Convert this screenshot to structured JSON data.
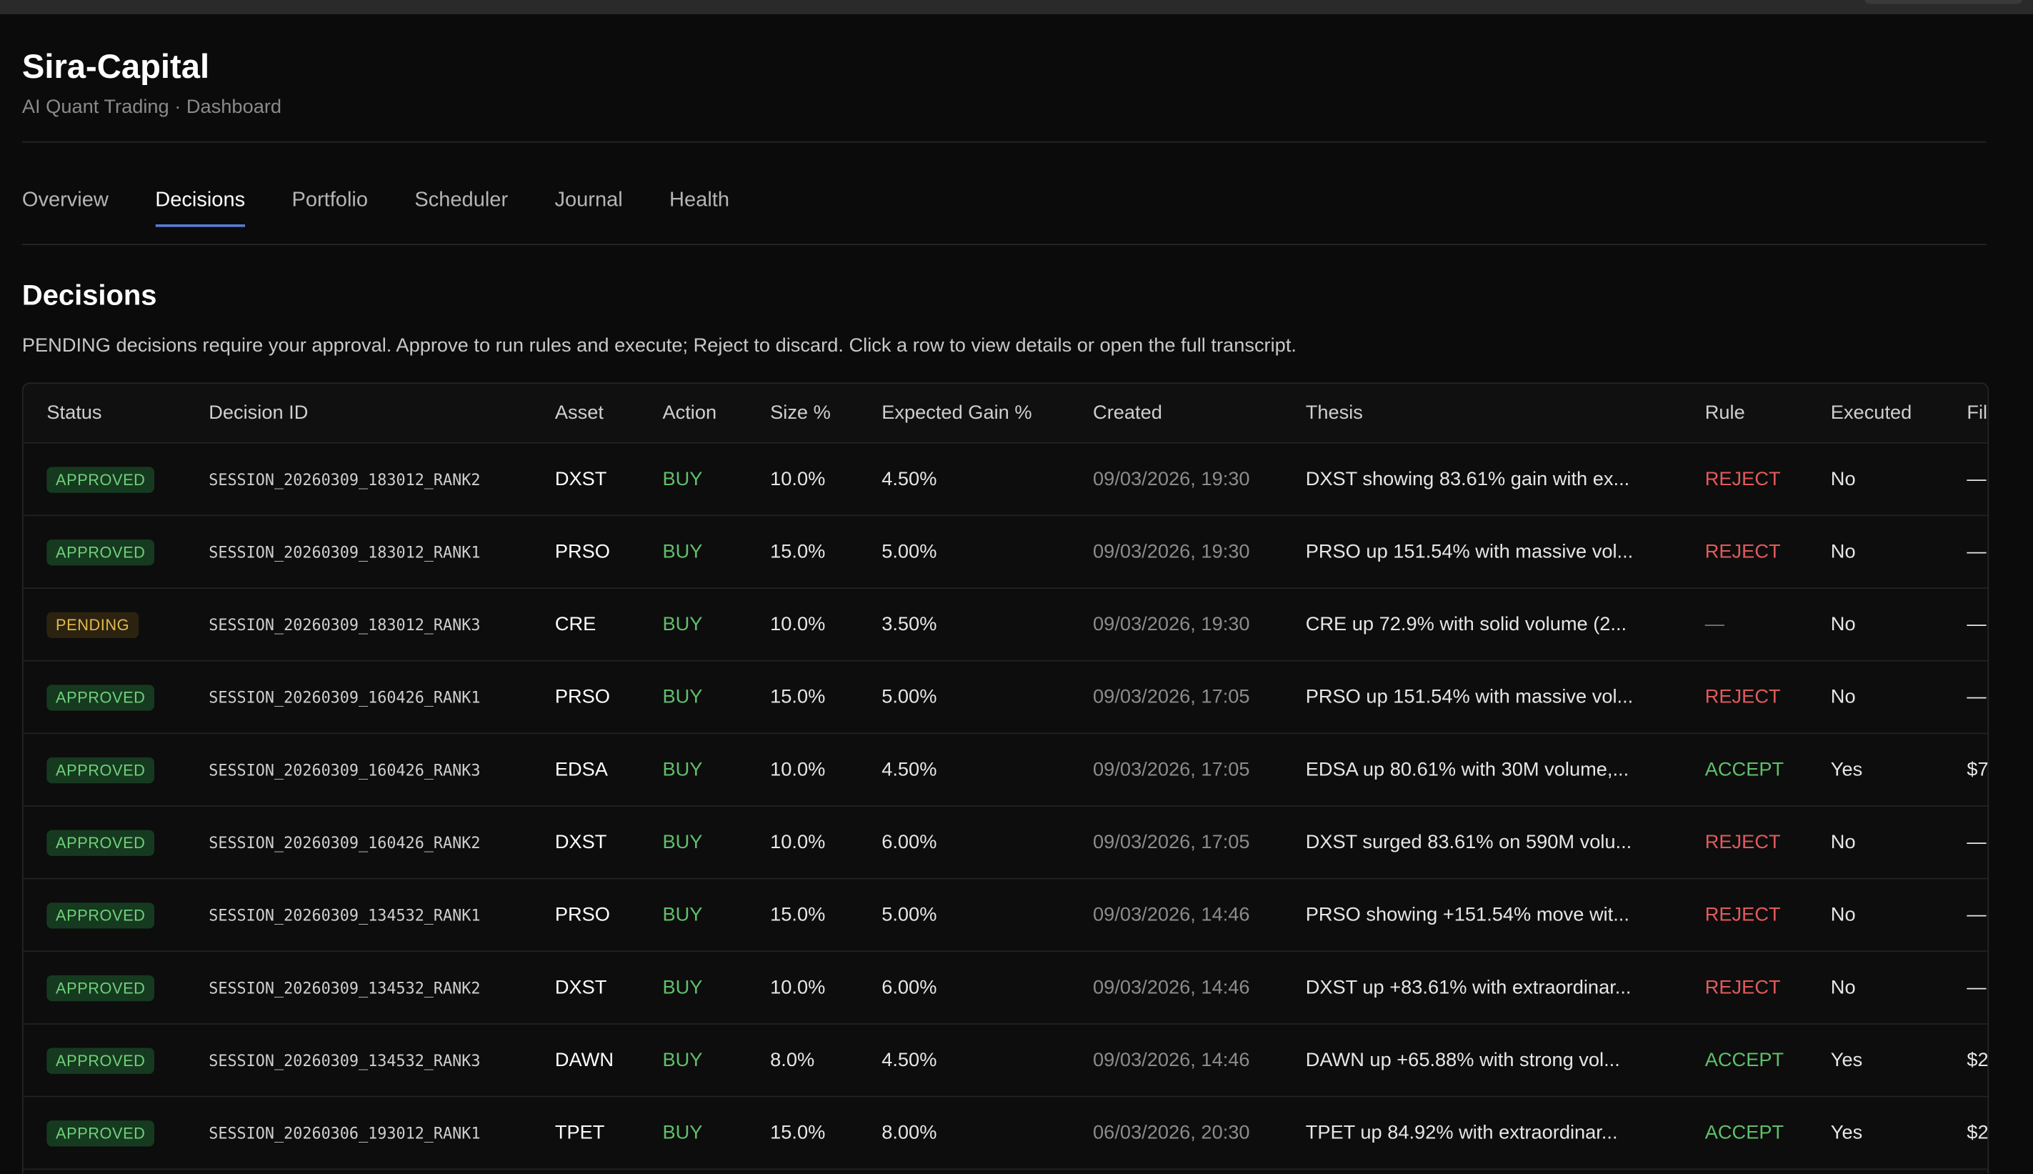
{
  "header": {
    "title": "Sira-Capital",
    "subtitle": "AI Quant Trading · Dashboard"
  },
  "tabs": [
    "Overview",
    "Decisions",
    "Portfolio",
    "Scheduler",
    "Journal",
    "Health"
  ],
  "active_tab": 1,
  "section": {
    "title": "Decisions",
    "description": "PENDING decisions require your approval. Approve to run rules and execute; Reject to discard. Click a row to view details or open the full transcript."
  },
  "table": {
    "columns": [
      "Status",
      "Decision ID",
      "Asset",
      "Action",
      "Size %",
      "Expected Gain %",
      "Created",
      "Thesis",
      "Rule",
      "Executed",
      "Fil"
    ],
    "rows": [
      [
        "APPROVED",
        "SESSION_20260309_183012_RANK2",
        "DXST",
        "BUY",
        "10.0%",
        "4.50%",
        "09/03/2026, 19:30",
        "DXST showing 83.61% gain with ex...",
        "REJECT",
        "No",
        "—"
      ],
      [
        "APPROVED",
        "SESSION_20260309_183012_RANK1",
        "PRSO",
        "BUY",
        "15.0%",
        "5.00%",
        "09/03/2026, 19:30",
        "PRSO up 151.54% with massive vol...",
        "REJECT",
        "No",
        "—"
      ],
      [
        "PENDING",
        "SESSION_20260309_183012_RANK3",
        "CRE",
        "BUY",
        "10.0%",
        "3.50%",
        "09/03/2026, 19:30",
        "CRE up 72.9% with solid volume (2...",
        "—",
        "No",
        "—"
      ],
      [
        "APPROVED",
        "SESSION_20260309_160426_RANK1",
        "PRSO",
        "BUY",
        "15.0%",
        "5.00%",
        "09/03/2026, 17:05",
        "PRSO up 151.54% with massive vol...",
        "REJECT",
        "No",
        "—"
      ],
      [
        "APPROVED",
        "SESSION_20260309_160426_RANK3",
        "EDSA",
        "BUY",
        "10.0%",
        "4.50%",
        "09/03/2026, 17:05",
        "EDSA up 80.61% with 30M volume,...",
        "ACCEPT",
        "Yes",
        "$7"
      ],
      [
        "APPROVED",
        "SESSION_20260309_160426_RANK2",
        "DXST",
        "BUY",
        "10.0%",
        "6.00%",
        "09/03/2026, 17:05",
        "DXST surged 83.61% on 590M volu...",
        "REJECT",
        "No",
        "—"
      ],
      [
        "APPROVED",
        "SESSION_20260309_134532_RANK1",
        "PRSO",
        "BUY",
        "15.0%",
        "5.00%",
        "09/03/2026, 14:46",
        "PRSO showing +151.54% move wit...",
        "REJECT",
        "No",
        "—"
      ],
      [
        "APPROVED",
        "SESSION_20260309_134532_RANK2",
        "DXST",
        "BUY",
        "10.0%",
        "6.00%",
        "09/03/2026, 14:46",
        "DXST up +83.61% with extraordinar...",
        "REJECT",
        "No",
        "—"
      ],
      [
        "APPROVED",
        "SESSION_20260309_134532_RANK3",
        "DAWN",
        "BUY",
        "8.0%",
        "4.50%",
        "09/03/2026, 14:46",
        "DAWN up +65.88% with strong vol...",
        "ACCEPT",
        "Yes",
        "$2"
      ],
      [
        "APPROVED",
        "SESSION_20260306_193012_RANK1",
        "TPET",
        "BUY",
        "15.0%",
        "8.00%",
        "06/03/2026, 20:30",
        "TPET up 84.92% with extraordinar...",
        "ACCEPT",
        "Yes",
        "$2"
      ]
    ]
  }
}
